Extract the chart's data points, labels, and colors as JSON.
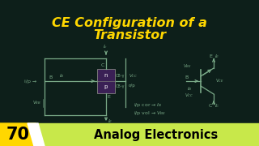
{
  "bg_color": "#0d1f1a",
  "title_line1": "CE Configuration of a",
  "title_line2": "Transistor",
  "title_color": "#FFD700",
  "title_fontsize": 11.5,
  "badge_number": "70",
  "badge_text": "Analog Electronics",
  "badge_bg": "#c8e84a",
  "badge_number_bg": "#FFD700",
  "circuit_color": "#7aaa88",
  "circuit_lw": 0.9
}
